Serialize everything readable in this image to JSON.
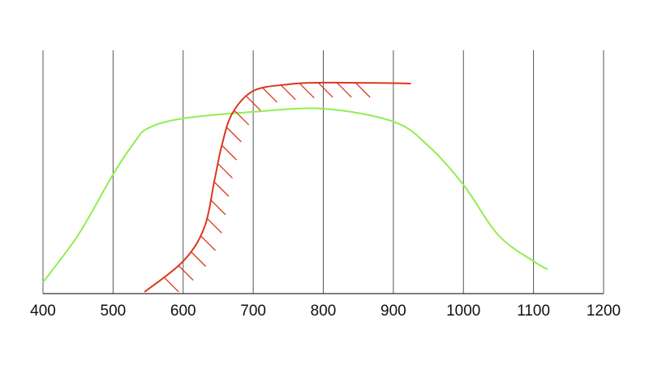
{
  "chart_data": {
    "type": "line",
    "xlim": [
      400,
      1200
    ],
    "xticks": [
      400,
      500,
      600,
      700,
      800,
      900,
      1000,
      1100,
      1200
    ],
    "ylim": [
      0,
      100
    ],
    "grid": true,
    "series": [
      {
        "color": "#90ee50",
        "x": [
          400,
          450,
          500,
          530,
          550,
          600,
          700,
          800,
          900,
          950,
          1000,
          1050,
          1100,
          1120
        ],
        "values": [
          4.7,
          24,
          49,
          62,
          68,
          72,
          74.7,
          76,
          70.7,
          60.7,
          44.7,
          24,
          13.3,
          10
        ]
      },
      {
        "color": "#d9381e",
        "hatched": true,
        "x": [
          545,
          600,
          630,
          645,
          655,
          670,
          700,
          750,
          800,
          900,
          925
        ],
        "values": [
          0.7,
          13.3,
          27,
          47,
          60.7,
          74,
          83.3,
          86,
          86.7,
          86.5,
          86.3
        ]
      }
    ]
  }
}
